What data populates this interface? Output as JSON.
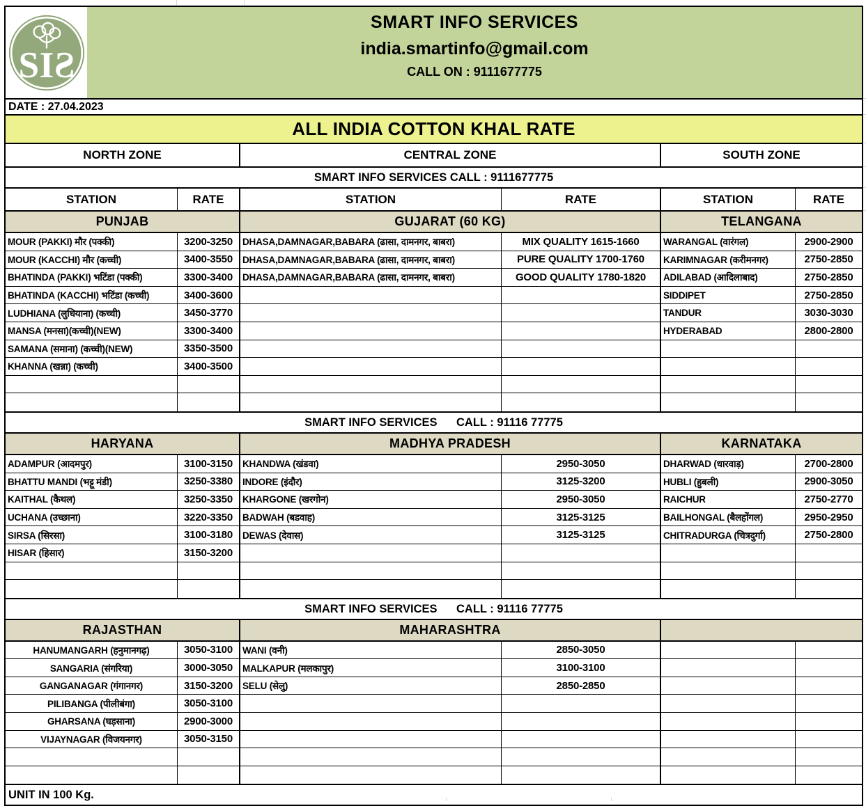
{
  "header": {
    "title": "SMART INFO SERVICES",
    "email": "india.smartinfo@gmail.com",
    "call_on": "CALL ON : 9111677775",
    "logo_letters": [
      "S",
      "I",
      "S"
    ]
  },
  "date_line": "DATE : 27.04.2023",
  "main_title": "ALL INDIA COTTON KHAL RATE",
  "zones": [
    "NORTH ZONE",
    "CENTRAL ZONE",
    "SOUTH ZONE"
  ],
  "call_line_top": "SMART INFO SERVICES CALL : 9111677775",
  "column_headers": [
    "STATION",
    "RATE",
    "STATION",
    "RATE",
    "STATION",
    "RATE"
  ],
  "colors": {
    "header_green": "#c3d49a",
    "banner_yellow": "#edf28e",
    "section_beige": "#ddd9c3",
    "logo_green": "#93a87b"
  },
  "bands": [
    {
      "section_headers": [
        "PUNJAB",
        "GUJARAT (60 KG)",
        "TELANGANA"
      ],
      "rows_total": 10,
      "center_north": false,
      "north": [
        [
          "MOUR (PAKKI) मौर (पक्की)",
          "3200-3250"
        ],
        [
          "MOUR (KACCHI) मौर (कच्ची)",
          "3400-3550"
        ],
        [
          "BHATINDA (PAKKI) भटिंडा (पक्की)",
          "3300-3400"
        ],
        [
          "BHATINDA (KACCHI) भटिंडा (कच्ची)",
          "3400-3600"
        ],
        [
          "LUDHIANA (लुधियाना) (कच्ची)",
          "3450-3770"
        ],
        [
          "MANSA (मनसा)(कच्ची)(NEW)",
          "3300-3400"
        ],
        [
          "SAMANA (समाना) (कच्ची)(NEW)",
          "3350-3500"
        ],
        [
          "KHANNA (खन्ना) (कच्ची)",
          "3400-3500"
        ]
      ],
      "central": [
        [
          "DHASA,DAMNAGAR,BABARA (ढासा, दामनगर, बाबरा)",
          "MIX QUALITY  1615-1660"
        ],
        [
          "DHASA,DAMNAGAR,BABARA (ढासा, दामनगर, बाबरा)",
          "PURE QUALITY 1700-1760"
        ],
        [
          "DHASA,DAMNAGAR,BABARA (ढासा, दामनगर, बाबरा)",
          "GOOD QUALITY 1780-1820"
        ]
      ],
      "south": [
        [
          "WARANGAL (वारंगल)",
          "2900-2900"
        ],
        [
          "KARIMNAGAR (करीमनगर)",
          "2750-2850"
        ],
        [
          "ADILABAD (आदिलाबाद)",
          "2750-2850"
        ],
        [
          "SIDDIPET",
          "2750-2850"
        ],
        [
          "TANDUR",
          "3030-3030"
        ],
        [
          "HYDERABAD",
          "2800-2800"
        ]
      ]
    },
    {
      "call_line": "SMART INFO SERVICES      CALL : 91116 77775",
      "section_headers": [
        "HARYANA",
        "MADHYA PRADESH",
        "KARNATAKA"
      ],
      "rows_total": 8,
      "center_north": false,
      "north": [
        [
          "ADAMPUR (आदमपुर)",
          "3100-3150"
        ],
        [
          "BHATTU MANDI (भट्टू मंडी)",
          "3250-3380"
        ],
        [
          "KAITHAL (कैथल)",
          "3250-3350"
        ],
        [
          "UCHANA (उच्छाना)",
          "3220-3350"
        ],
        [
          "SIRSA (सिरसा)",
          "3100-3180"
        ],
        [
          "HISAR (हिसार)",
          "3150-3200"
        ]
      ],
      "central": [
        [
          "KHANDWA (खंडवा)",
          "2950-3050"
        ],
        [
          "INDORE (इंदौर)",
          "3125-3200"
        ],
        [
          "KHARGONE (खरगोन)",
          "2950-3050"
        ],
        [
          "BADWAH (बडवाह)",
          "3125-3125"
        ],
        [
          "DEWAS (देवास)",
          "3125-3125"
        ]
      ],
      "south": [
        [
          "DHARWAD (धारवाड़)",
          "2700-2800"
        ],
        [
          "HUBLI (हुबली)",
          "2900-3050"
        ],
        [
          "RAICHUR",
          "2750-2770"
        ],
        [
          "BAILHONGAL (बैलहोंगल)",
          "2950-2950"
        ],
        [
          "CHITRADURGA (चित्रदुर्गा)",
          "2750-2800"
        ]
      ]
    },
    {
      "call_line": "SMART INFO SERVICES      CALL : 91116 77775",
      "section_headers": [
        "RAJASTHAN",
        "MAHARASHTRA",
        ""
      ],
      "rows_total": 8,
      "center_north": true,
      "north": [
        [
          "HANUMANGARH (हनुमानगढ़)",
          "3050-3100"
        ],
        [
          "SANGARIA (संगरिया)",
          "3000-3050"
        ],
        [
          "GANGANAGAR (गंगानगर)",
          "3150-3200"
        ],
        [
          "PILIBANGA (पीलीबंगा)",
          "3050-3100"
        ],
        [
          "GHARSANA (घड़साना)",
          "2900-3000"
        ],
        [
          "VIJAYNAGAR (विजयनगर)",
          "3050-3150"
        ]
      ],
      "central": [
        [
          "WANI (वनी)",
          "2850-3050"
        ],
        [
          "MALKAPUR (मलकापुर)",
          "3100-3100"
        ],
        [
          "SELU (सेलु)",
          "2850-2850"
        ]
      ],
      "south": []
    }
  ],
  "footer": "UNIT IN 100 Kg."
}
